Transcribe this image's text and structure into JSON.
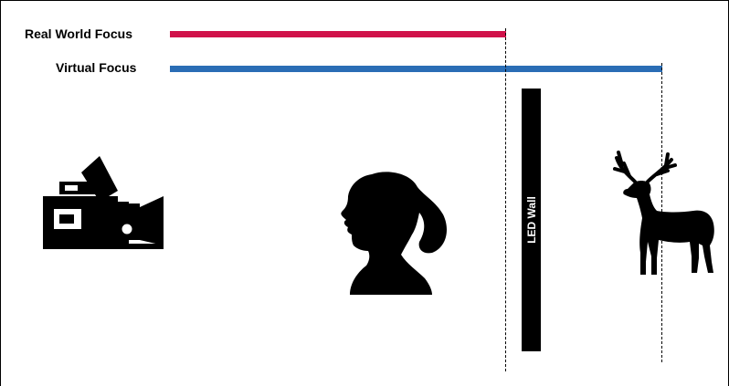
{
  "focus": {
    "real_world": {
      "label": "Real World Focus",
      "color": "#d0124a"
    },
    "virtual": {
      "label": "Virtual Focus",
      "color": "#2a6db5"
    }
  },
  "led_wall": {
    "label": "LED Wall"
  },
  "icons": {
    "camera": "camera-icon",
    "person": "woman-silhouette-icon",
    "deer": "deer-icon"
  }
}
